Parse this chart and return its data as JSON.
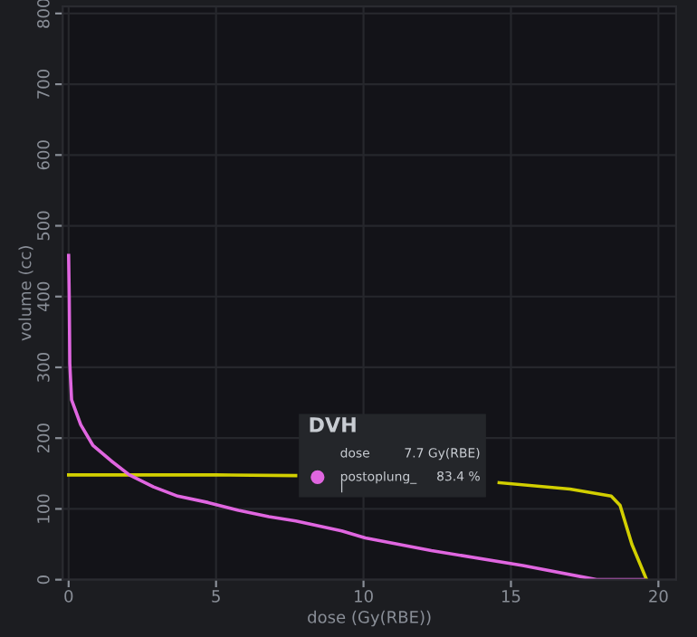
{
  "chart_data": {
    "type": "line",
    "xlabel": "dose (Gy(RBE))",
    "ylabel": "volume (cc)",
    "annotations": [
      "DVH",
      "dose",
      "7.7 Gy(RBE)",
      "postoplung_\nl",
      "83.4 %"
    ],
    "xlim": [
      -0.2,
      20.6
    ],
    "ylim": [
      0,
      810
    ],
    "xticks": [
      0,
      5,
      10,
      15,
      20
    ],
    "yticks": [
      0,
      100,
      200,
      300,
      400,
      500,
      600,
      700,
      800
    ],
    "grid": true,
    "marker": "none",
    "line_style": "solid",
    "series": [
      {
        "color": "#d2cf00",
        "x": [
          0,
          5,
          7.7,
          9,
          12,
          14.6,
          17,
          18.4,
          18.7,
          19.1,
          19.6
        ],
        "values": [
          148,
          148,
          147,
          null,
          null,
          137,
          128,
          118,
          105,
          50,
          0
        ]
      },
      {
        "color": "#e066e0",
        "x": [
          0,
          0.02,
          0.04,
          0.1,
          0.41,
          0.82,
          1.44,
          2.06,
          2.88,
          3.7,
          4.73,
          5.76,
          6.79,
          7.7,
          9.26,
          10.06,
          12.3,
          15.4,
          17.9,
          19.5
        ],
        "values": [
          458,
          400,
          305,
          254,
          219,
          190,
          168,
          148,
          131,
          118,
          109,
          98,
          89,
          83,
          69,
          59,
          41,
          20,
          0,
          0
        ]
      }
    ]
  }
}
